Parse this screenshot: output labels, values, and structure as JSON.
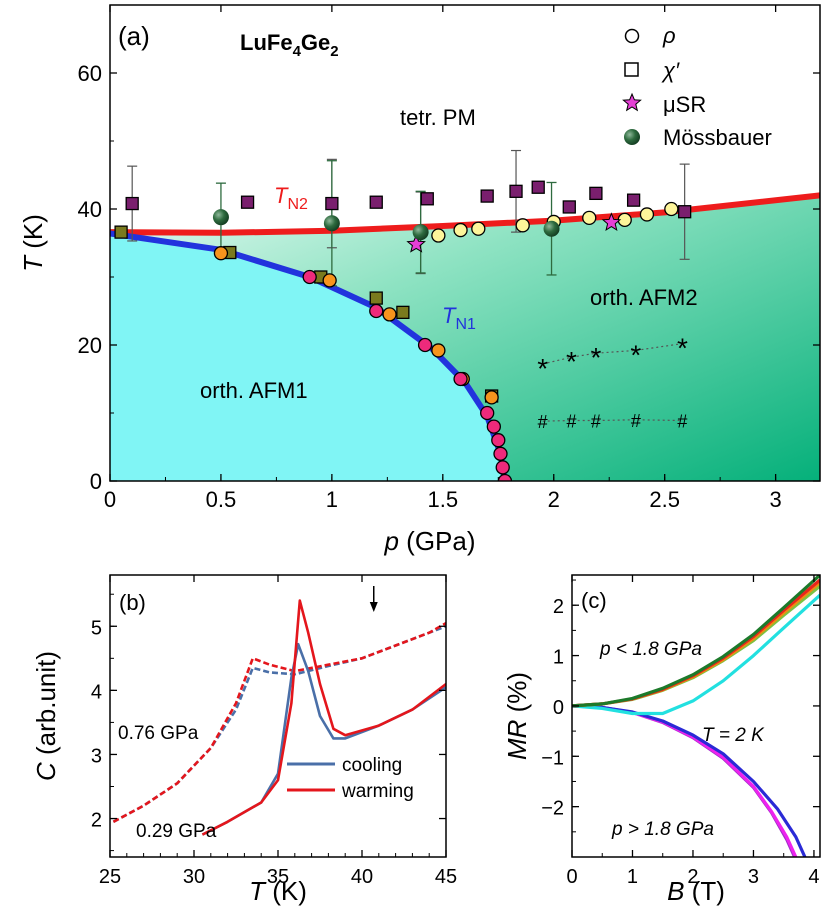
{
  "chart_data": [
    {
      "panel": "(a)",
      "type": "scatter",
      "title": "LuFe4Ge2",
      "xlabel": "p (GPa)",
      "ylabel": "T (K)",
      "xlim": [
        0,
        3.2
      ],
      "ylim": [
        0,
        70
      ],
      "xticks": [
        "0",
        "0.5",
        "1",
        "1.5",
        "2",
        "2.5",
        "3"
      ],
      "yticks": [
        "0",
        "20",
        "40",
        "60"
      ],
      "legend": [
        {
          "label": "ρ",
          "marker": "circle"
        },
        {
          "label": "χ′",
          "marker": "square"
        },
        {
          "label": "μSR",
          "marker": "star"
        },
        {
          "label": "Mössbauer",
          "marker": "sphere"
        }
      ],
      "legend_position": "top-right",
      "region_labels": [
        "tetr. PM",
        "orth. AFM2",
        "orth. AFM1"
      ],
      "line_labels": {
        "TN2": "T",
        "TN2_sub": "N2",
        "TN1": "T",
        "TN1_sub": "N1"
      },
      "colors": {
        "AFM1": "#80f5f5",
        "AFM2": "#19c18a",
        "TN2": "#ee1c1c",
        "TN1": "#2233dd"
      },
      "TN2_line": [
        [
          0,
          36.6
        ],
        [
          0.5,
          36.5
        ],
        [
          1,
          36.8
        ],
        [
          1.5,
          37.5
        ],
        [
          2,
          38.3
        ],
        [
          2.5,
          39.5
        ],
        [
          3.2,
          42.0
        ]
      ],
      "TN1_line": [
        [
          0,
          36.4
        ],
        [
          0.5,
          34.0
        ],
        [
          0.9,
          30.0
        ],
        [
          1.2,
          25.5
        ],
        [
          1.45,
          19.5
        ],
        [
          1.6,
          14.5
        ],
        [
          1.7,
          9.5
        ],
        [
          1.76,
          4.0
        ],
        [
          1.78,
          0
        ]
      ],
      "series": [
        {
          "name": "ρ (TN2, yellow)",
          "x": [
            1.4,
            1.48,
            1.58,
            1.66,
            1.86,
            2.0,
            2.16,
            2.32,
            2.42,
            2.53
          ],
          "y": [
            36.5,
            36.1,
            36.9,
            37.1,
            37.6,
            38.1,
            38.7,
            38.4,
            39.2,
            40.0
          ]
        },
        {
          "name": "ρ (TN1, orange)",
          "x": [
            0.5,
            0.99,
            1.26,
            1.48,
            1.59,
            1.72
          ],
          "y": [
            33.5,
            29.5,
            24.5,
            19.2,
            15.0,
            12.3
          ]
        },
        {
          "name": "ρ (TN1, pink)",
          "x": [
            0.9,
            1.2,
            1.42,
            1.58,
            1.7,
            1.73,
            1.75,
            1.76,
            1.77,
            1.78
          ],
          "y": [
            30.0,
            25.0,
            20.0,
            15.0,
            10.0,
            8.0,
            6.0,
            4.0,
            2.0,
            0
          ]
        },
        {
          "name": "χ′ (TN2)",
          "x": [
            0.1,
            0.62,
            1.0,
            1.2,
            1.43,
            1.7,
            1.83,
            1.93,
            2.07,
            2.19,
            2.36,
            2.59
          ],
          "y": [
            40.8,
            41.0,
            40.8,
            41.0,
            41.5,
            41.9,
            42.6,
            43.2,
            40.3,
            42.3,
            41.3,
            39.6
          ]
        },
        {
          "name": "χ′ (TN1)",
          "x": [
            0.05,
            0.54,
            0.95,
            1.2,
            1.32,
            1.72
          ],
          "y": [
            36.6,
            33.6,
            30.0,
            26.9,
            24.8,
            12.5
          ]
        },
        {
          "name": "μSR",
          "x": [
            1.38,
            2.26
          ],
          "y": [
            34.8,
            38.0
          ]
        },
        {
          "name": "Mössbauer",
          "x": [
            0.5,
            1.0,
            1.4,
            1.99
          ],
          "y": [
            38.8,
            37.9,
            36.6,
            37.1
          ],
          "yerr": [
            5.0,
            9.2,
            6.0,
            6.8
          ]
        },
        {
          "name": "* feature",
          "x": [
            1.95,
            2.08,
            2.19,
            2.37,
            2.58
          ],
          "y": [
            17.2,
            18.2,
            18.8,
            19.2,
            20.2
          ],
          "marker_label": "*"
        },
        {
          "name": "# feature",
          "x": [
            1.95,
            2.08,
            2.19,
            2.37,
            2.58
          ],
          "y": [
            8.8,
            8.9,
            8.9,
            9.0,
            8.9
          ],
          "marker_label": "#"
        }
      ],
      "error_bars": [
        {
          "x": 0.1,
          "y": 40.8,
          "err": 5.5
        },
        {
          "x": 1.0,
          "y": 40.8,
          "err": 6.5
        },
        {
          "x": 1.4,
          "y": 36.5,
          "err": 6.0
        },
        {
          "x": 1.83,
          "y": 42.6,
          "err": 6.0
        },
        {
          "x": 2.59,
          "y": 39.6,
          "err": 7.0
        }
      ]
    },
    {
      "panel": "(b)",
      "type": "line",
      "xlabel": "T (K)",
      "ylabel": "C (arb.unit)",
      "xlim": [
        25,
        45
      ],
      "ylim": [
        1.4,
        5.8
      ],
      "xticks": [
        "25",
        "30",
        "35",
        "40",
        "45"
      ],
      "yticks": [
        "2",
        "3",
        "4",
        "5"
      ],
      "legend": [
        "cooling",
        "warming"
      ],
      "legend_position": "bottom-right",
      "colors": {
        "cooling": "#4a6fa8",
        "warming": "#e4161c"
      },
      "annotations": [
        "0.76 GPa",
        "0.29 GPa"
      ],
      "series": [
        {
          "name": "cooling",
          "pressure": "0.76 GPa",
          "x": [
            25.2,
            27,
            29,
            31,
            32.5,
            33.5,
            34.5,
            36,
            38,
            40,
            42,
            44,
            45
          ],
          "y": [
            1.95,
            2.2,
            2.55,
            3.1,
            3.7,
            4.35,
            4.28,
            4.25,
            4.38,
            4.5,
            4.7,
            4.9,
            5.0
          ]
        },
        {
          "name": "warming",
          "pressure": "0.76 GPa",
          "x": [
            25.2,
            27,
            29,
            31,
            32.5,
            33.5,
            34.5,
            36,
            38,
            40,
            42,
            44,
            45
          ],
          "y": [
            1.95,
            2.2,
            2.55,
            3.1,
            3.8,
            4.5,
            4.4,
            4.3,
            4.4,
            4.5,
            4.7,
            4.9,
            5.05
          ]
        },
        {
          "name": "cooling",
          "pressure": "0.29 GPa",
          "x": [
            30.5,
            32,
            34,
            35,
            35.8,
            36.2,
            36.8,
            37.5,
            38.3,
            39,
            41,
            43,
            45
          ],
          "y": [
            1.75,
            1.95,
            2.25,
            2.7,
            4.2,
            4.72,
            4.3,
            3.6,
            3.25,
            3.25,
            3.45,
            3.7,
            4.05
          ]
        },
        {
          "name": "warming",
          "pressure": "0.29 GPa",
          "x": [
            30.5,
            32,
            34,
            35,
            35.8,
            36.3,
            36.8,
            37.5,
            38.3,
            39,
            41,
            43,
            45
          ],
          "y": [
            1.75,
            1.95,
            2.25,
            2.6,
            3.8,
            5.4,
            4.9,
            4.1,
            3.4,
            3.3,
            3.45,
            3.7,
            4.1
          ]
        }
      ],
      "arrow_at_x": 40.7
    },
    {
      "panel": "(c)",
      "type": "line",
      "xlabel": "B (T)",
      "ylabel": "MR (%)",
      "xlim": [
        0,
        4.1
      ],
      "ylim": [
        -3.0,
        2.6
      ],
      "xticks": [
        "0",
        "1",
        "2",
        "3",
        "4"
      ],
      "yticks": [
        "-2",
        "-1",
        "0",
        "1",
        "2"
      ],
      "annotations": [
        "p < 1.8 GPa",
        "T = 2 K",
        "p > 1.8 GPa"
      ],
      "series": [
        {
          "name": "p < 1.8 GPa #1",
          "color": "#1c7a2a",
          "x": [
            0,
            0.5,
            1,
            1.5,
            2,
            2.5,
            3,
            3.5,
            4.1
          ],
          "y": [
            0,
            0.04,
            0.15,
            0.35,
            0.62,
            0.98,
            1.42,
            1.95,
            2.6
          ]
        },
        {
          "name": "p < 1.8 GPa #2",
          "color": "#e8251c",
          "x": [
            0,
            0.5,
            1,
            1.5,
            2,
            2.5,
            3,
            3.5,
            4.1
          ],
          "y": [
            0,
            0.04,
            0.14,
            0.33,
            0.6,
            0.95,
            1.38,
            1.9,
            2.5
          ]
        },
        {
          "name": "p < 1.8 GPa #3",
          "color": "#f08a12",
          "x": [
            0,
            0.5,
            1,
            1.5,
            2,
            2.5,
            3,
            3.5,
            4.1
          ],
          "y": [
            0,
            0.04,
            0.14,
            0.32,
            0.58,
            0.92,
            1.34,
            1.85,
            2.45
          ]
        },
        {
          "name": "p < 1.8 GPa #4",
          "color": "#7cc242",
          "x": [
            0,
            0.5,
            1,
            1.5,
            2,
            2.5,
            3,
            3.5,
            4.1
          ],
          "y": [
            0,
            0.04,
            0.13,
            0.31,
            0.56,
            0.9,
            1.3,
            1.8,
            2.38
          ]
        },
        {
          "name": "p < 1.8 GPa #5",
          "color": "#22e0e0",
          "x": [
            0,
            0.5,
            1,
            1.5,
            2,
            2.5,
            3,
            3.5,
            4.1
          ],
          "y": [
            0,
            -0.05,
            -0.15,
            -0.15,
            0.1,
            0.5,
            1.0,
            1.55,
            2.2
          ]
        },
        {
          "name": "p > 1.8 GPa #1",
          "color": "#2a2ad6",
          "x": [
            0,
            0.5,
            1,
            1.5,
            2,
            2.5,
            3,
            3.4,
            3.7,
            3.85
          ],
          "y": [
            0,
            -0.03,
            -0.12,
            -0.3,
            -0.58,
            -0.95,
            -1.5,
            -2.05,
            -2.6,
            -3.0
          ]
        },
        {
          "name": "p > 1.8 GPa #2",
          "color": "#ee22ee",
          "x": [
            0,
            0.5,
            1,
            1.5,
            2,
            2.5,
            3,
            3.3,
            3.55,
            3.7
          ],
          "y": [
            0,
            -0.03,
            -0.13,
            -0.32,
            -0.62,
            -1.02,
            -1.6,
            -2.1,
            -2.6,
            -3.0
          ]
        },
        {
          "name": "p > 1.8 GPa #3",
          "color": "#a030c8",
          "x": [
            0,
            0.5,
            1,
            1.5,
            2,
            2.5,
            3,
            3.3,
            3.55,
            3.68
          ],
          "y": [
            0,
            -0.03,
            -0.13,
            -0.33,
            -0.63,
            -1.04,
            -1.62,
            -2.12,
            -2.65,
            -3.0
          ]
        }
      ]
    }
  ]
}
